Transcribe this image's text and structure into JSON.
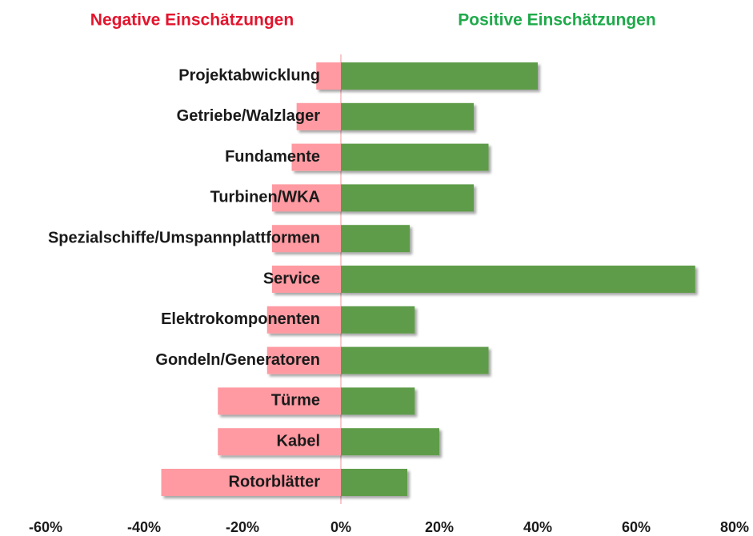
{
  "chart_data": {
    "type": "diverging-bar",
    "titles": [
      "Negative Einschätzungen",
      "Positive Einschätzungen"
    ],
    "categories": [
      "Projektabwicklung",
      "Getriebe/Walzlager",
      "Fundamente",
      "Turbinen/WKA",
      "Spezialschiffe/Umspannplattformen",
      "Service",
      "Elektrokomponenten",
      "Gondeln/Generatoren",
      "Türme",
      "Kabel",
      "Rotorblätter"
    ],
    "series": [
      {
        "name": "Negative Einschätzungen",
        "color": "#ff9aa2",
        "values": [
          -5,
          -9,
          -10,
          -14,
          -14,
          -14,
          -15,
          -15,
          -25,
          -25,
          -36.5
        ]
      },
      {
        "name": "Positive Einschätzungen",
        "color": "#5e9c4a",
        "values": [
          40,
          27,
          30,
          27,
          14,
          72,
          15,
          30,
          15,
          20,
          13.5
        ]
      }
    ],
    "xlim": [
      -60,
      80
    ],
    "xticks": [
      {
        "value": -60,
        "label": "-60%"
      },
      {
        "value": -40,
        "label": "-40%"
      },
      {
        "value": -20,
        "label": "-20%"
      },
      {
        "value": 0,
        "label": "0%"
      },
      {
        "value": 20,
        "label": "20%"
      },
      {
        "value": 40,
        "label": "40%"
      },
      {
        "value": 60,
        "label": "60%"
      },
      {
        "value": 80,
        "label": "80%"
      }
    ],
    "grid": false
  }
}
